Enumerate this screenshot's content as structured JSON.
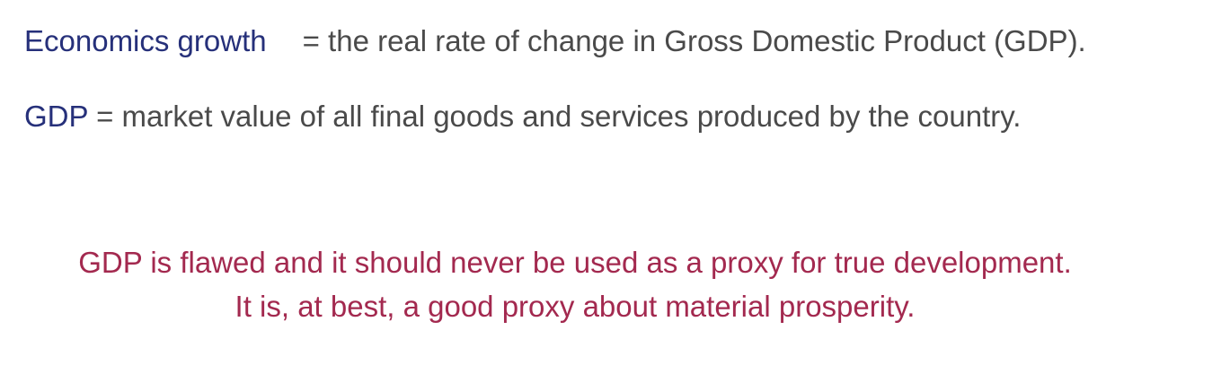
{
  "definitions": [
    {
      "term": "Economics growth",
      "text": "= the real rate of change in Gross Domestic Product (GDP)."
    },
    {
      "term": "GDP",
      "text": " = market value of all final goods and services produced by the country."
    }
  ],
  "conclusion": {
    "line1": "GDP is flawed and it should never be used as a proxy for true development.",
    "line2": "It is, at best, a good proxy about material prosperity."
  },
  "colors": {
    "term": "#26307a",
    "body_text": "#4a4a4a",
    "conclusion": "#a3294f"
  }
}
